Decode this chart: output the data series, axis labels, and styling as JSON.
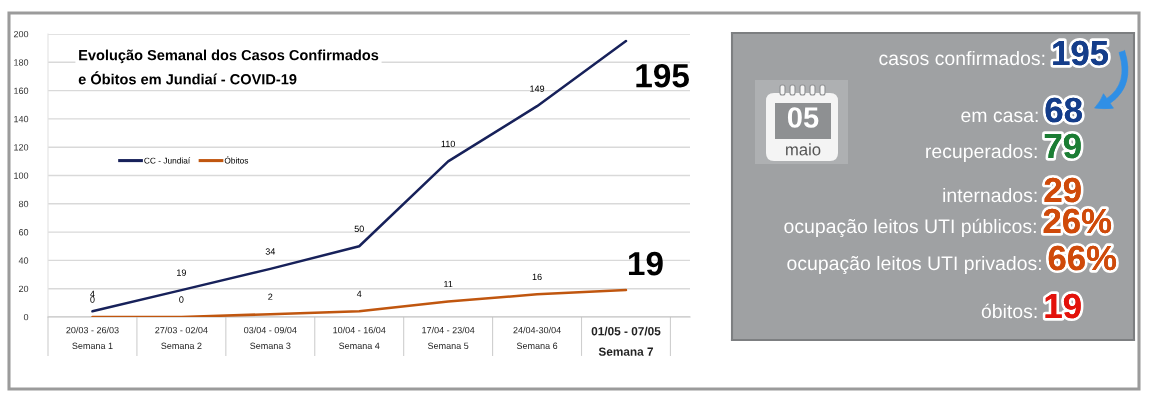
{
  "chart_data": [
    {
      "type": "line",
      "title": "Evolução Semanal dos Casos Confirmados\ne Óbitos em Jundiaí - COVID-19",
      "categories": [
        "20/03 - 26/03\nSemana 1",
        "27/03 - 02/04\nSemana 2",
        "03/04 - 09/04\nSemana 3",
        "10/04 - 16/04\nSemana 4",
        "17/04 - 23/04\nSemana 5",
        "24/04-30/04\nSemana 6",
        "01/05 - 07/05\nSemana 7"
      ],
      "series": [
        {
          "name": "CC - Jundiaí",
          "color": "#17215a",
          "values": [
            4,
            19,
            34,
            50,
            110,
            149,
            195
          ]
        },
        {
          "name": "Óbitos",
          "color": "#c0560f",
          "values": [
            0,
            0,
            2,
            4,
            11,
            16,
            19
          ]
        }
      ],
      "ylim": [
        0,
        200
      ],
      "yticks": [
        0,
        20,
        40,
        60,
        80,
        100,
        120,
        140,
        160,
        180,
        200
      ],
      "grid": "y",
      "legend": "center left",
      "data_labels": true
    },
    {
      "type": "other",
      "annotations": [
        "05",
        "maio",
        "casos confirmados:",
        "195",
        "em casa:",
        "68",
        "recuperados:",
        "79",
        "internados:",
        "29",
        "ocupação leitos UTI públicos:",
        "26%",
        "ocupação leitos UTI privados:",
        "66%",
        "óbitos:",
        "19"
      ]
    }
  ]
}
